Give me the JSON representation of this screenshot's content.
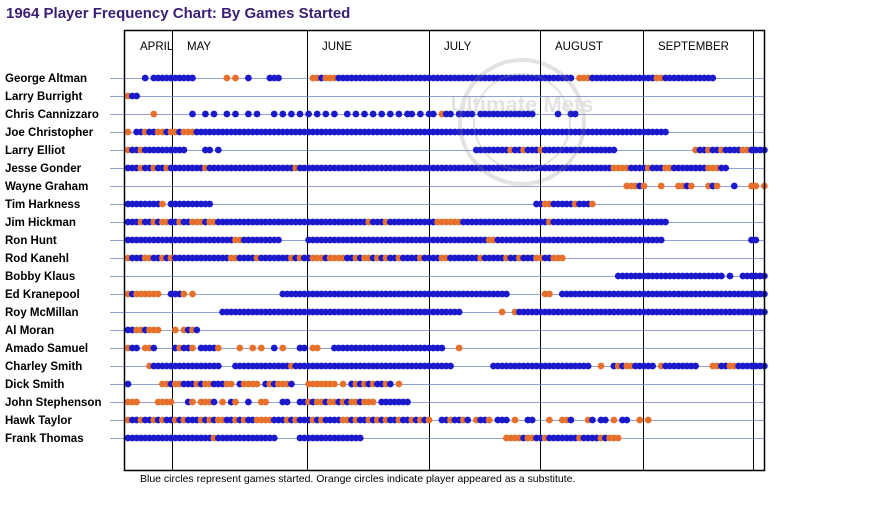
{
  "title": "1964 Player Frequency Chart: By Games Started",
  "footnote": "Blue circles represent games started. Orange circles indicate player appeared as a substitute.",
  "watermark": "Ultimate Mets",
  "colors": {
    "started": "#1a1acc",
    "substitute": "#e8702a",
    "title": "#3b1f72",
    "grid": "#7080c0"
  },
  "chart_data": {
    "type": "scatter",
    "title": "1964 Player Frequency Chart: By Games Started",
    "months": [
      "APRIL",
      "MAY",
      "JUNE",
      "JULY",
      "AUGUST",
      "SEPTEMBER"
    ],
    "legend": {
      "S": "started",
      "O": "substitute"
    },
    "players": [
      {
        "name": "George Altman",
        "pattern": "....S.SSSSSSSSSS.......O.O..S....SSS.......OOSOOOSSSSSSSSSSSSSSSSSSSSSSSSSSSSSSSSSSSSSSSSSSSSSSSSSSSSSSS.OOOSSSSSSSSSSSSSSSOOSSSSSSSSSSSS"
      },
      {
        "name": "Larry Burright",
        "pattern": "OSS"
      },
      {
        "name": "Chris Cannizzaro",
        "pattern": "......O........S..S.S..S.S..S.S...S.S.S.S.S.S.S.S..S.S.S.S.S.S.S.SS.S.SS.OSS.SSSS.SSSSSSSSSSSSS.....S..SS"
      },
      {
        "name": "Joe Christopher",
        "pattern": "O.SSOSSOOSOOSOOOSSSSSSSSSSSSSSSSSSSSSSSSSSSSSSSSSSSSSSSSSSSSSSSSSSSSSSSSSSSSSSSSSSSSSSSSSSSSSSSSSSSSSSSSSSSSSSSSSSSSSSSSSSSSSS"
      },
      {
        "name": "Larry Elliot",
        "pattern": "OSSOSSSSSSSSSS....SS.S...........................................................SSSSSSSSOSSOSSSOSSSSSSSSSSSSSSSSS..................OSSOSSOSSSSOOSSSSSSSOSSO"
      },
      {
        "name": "Jesse Gonder",
        "pattern": "SSSOSSOSSOSSSSSSSSOSSSSSSSSSSSSSSSSSSSSOSSSSSSSSSSSSSSSSSSSSSSSSSSSSSSSSSSSSSSSSSSSSSSSSSSSSSSSSSSSSSSSSSSSSSSSSSOOOOSSSSOSSSOOSSSSSSSSOOOSS"
      },
      {
        "name": "Wayne Graham",
        "pattern": "....................................................................................................................OOOSO...O...OOSO...OSO...S...OO.O.O...O"
      },
      {
        "name": "Tim Harkness",
        "pattern": "SSSSSSSSO.SSSSSSSSSS...........................................................................SSOOSSSSSOSSSO"
      },
      {
        "name": "Jim Hickman",
        "pattern": "SSSOSSOSOOSSOSSOOOSOOSSSSSSSSSSSSSSSSSSSSSSSSSSSSSSSSSSSOSSSOSSSSSSSSSSSOOOOOOSSSSSSSSSSSSSSSSSSSSOSSSSSSSSSSSSSSSSSSSSSSSSSSS"
      },
      {
        "name": "Ron Hunt",
        "pattern": "SSSSSSSSSSSSSSSSSSSSSSSSSOOSSSSSSSSS......SSSSSSSSSSSSSSSSSSSSSSSSSSSSSSSSSSSSSSSSSSOOSSSSSSSSSSSSSSSSSSSSSSSSSSSSSSSSSSSSSSS....................SS..S"
      },
      {
        "name": "Rod Kanehl",
        "pattern": "OSSSOOSSOSOSSSSSSSSSSSSSOOSSSSOSSSSSSSOSOSSOOOSOOOOSSOSOOSOSOSSOSSSSOSSSSOOSSSSSSSOSSSSSOSSOSSSOOSSOOO"
      },
      {
        "name": "Bobby Klaus",
        "pattern": "..................................................................................................................SSSSSSSSSSSSSSSSSSSSSSSSS.S..SSSSSSSSSSSSSSSSSSSSSSSSSOOSSSSSSSSSSSSSSSSSSSSSSSSSS"
      },
      {
        "name": "Ed Kranepool",
        "pattern": "OSOOOOOO..SSSO.O....................SSSSSSSSSSSSSSSSSSSSSSSSSSSSSSSSSSSSSSSSSSSSSSSSSSSSS........OO..SSSSSSSSSSSSSSSSSSSSSSSSSSSSSSSSSSSSSSSSSSSSSSSSSSSSSSSSSSSSSSSSSSSSSSSSSS"
      },
      {
        "name": "Roy McMillan",
        "pattern": "......................SSSSSSSSSSSSSSSSSSSSSSSSSSSSSSSSSSSSSSSSSSSSSSSSSSSSSSSS.........O..OSSSSSSSSSSSSSSSSSSSSSSSSSSSSSSSSSSSSSSSSSSSSSSSSSSSSSSSSSSSSSSSSSSSSSSSSSSSSSSSS"
      },
      {
        "name": "Al Moran",
        "pattern": "SSOOSOOO...O.OSOS"
      },
      {
        "name": "Amado Samuel",
        "pattern": "OSS.OOS....SOSSO.SSSSO....O..O.O..S.O...SS.OO...SSSSSSSSSSSSSSSSSSSSSSSSSS...O"
      },
      {
        "name": "Charley Smith",
        "pattern": ".....OSSSSSSSSSSSSSSSS...SSSSSSSSSSSSSOSSSSSSSSSSSSSSSSSSSSSSSSSSSSSSSSSSSSS.........SSSSSSSSSSSSSSSSSSSSSSS..O..SOSOOSSSSS.OSSSSSSSS...OOSSOOSSSSSSSSO.S...SSSSSSSSSSSS"
      },
      {
        "name": "Dick Smith",
        "pattern": "S.......OOSOOSSSOSOOSSSOO.SOOOO.SOSOOOS...OOOOOOO.O.SOSOSOSSOS.O"
      },
      {
        "name": "John Stephenson",
        "pattern": "OOO....OOOO...SO.OOOS.O.SO..S..OO...SS..SSOSOOSOOSOSOOSOOO.SSSSSSS"
      },
      {
        "name": "Hawk Taylor",
        "pattern": "OSSOSSOSOSSOSOSSSOSOSOOSSOSOSSOOOOSSSOSOSSSOSOSSSSOOSOSSOSOSOSSOSSOSOSO..SSOSSOS.OSSO.SSS.O..SS...O..OOS...OS.SS.O.SS..O.O"
      },
      {
        "name": "Frank Thomas",
        "pattern": "SSSSSSSSSSSSSSSSSSSSOSSSSSSSSSSSSSS.....SSSSSSSSSSSSSSS.................................OOOOSOOSSOSSSSSSSOSSSSOSOOO"
      }
    ]
  }
}
